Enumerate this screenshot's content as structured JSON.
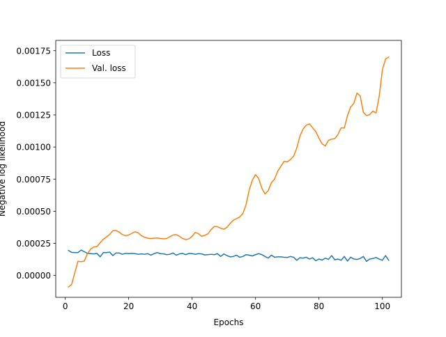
{
  "chart_data": {
    "type": "line",
    "title": "",
    "xlabel": "Epochs",
    "ylabel": "Negative log likelihood",
    "xlim": [
      -3,
      106
    ],
    "ylim": [
      -0.00017,
      0.00183
    ],
    "xticks": [
      0,
      20,
      40,
      60,
      80,
      100
    ],
    "xtick_labels": [
      "0",
      "20",
      "40",
      "60",
      "80",
      "100"
    ],
    "yticks": [
      0.0,
      0.00025,
      0.0005,
      0.00075,
      0.001,
      0.00125,
      0.0015,
      0.00175
    ],
    "ytick_labels": [
      "0.00000",
      "0.00025",
      "0.00050",
      "0.00075",
      "0.00100",
      "0.00125",
      "0.00150",
      "0.00175"
    ],
    "grid": false,
    "legend": "top-left",
    "x": [
      1,
      2,
      3,
      4,
      5,
      6,
      7,
      8,
      9,
      10,
      11,
      12,
      13,
      14,
      15,
      16,
      17,
      18,
      19,
      20,
      21,
      22,
      23,
      24,
      25,
      26,
      27,
      28,
      29,
      30,
      31,
      32,
      33,
      34,
      35,
      36,
      37,
      38,
      39,
      40,
      41,
      42,
      43,
      44,
      45,
      46,
      47,
      48,
      49,
      50,
      51,
      52,
      53,
      54,
      55,
      56,
      57,
      58,
      59,
      60,
      61,
      62,
      63,
      64,
      65,
      66,
      67,
      68,
      69,
      70,
      71,
      72,
      73,
      74,
      75,
      76,
      77,
      78,
      79,
      80,
      81,
      82,
      83,
      84,
      85,
      86,
      87,
      88,
      89,
      90,
      91,
      92,
      93,
      94,
      95,
      96,
      97,
      98,
      99,
      100,
      101,
      102
    ],
    "series": [
      {
        "name": "Loss",
        "color": "#1f77b4",
        "values": [
          0.000195,
          0.00018,
          0.000178,
          0.000178,
          0.000198,
          0.000185,
          0.000172,
          0.00017,
          0.000168,
          0.000172,
          0.000145,
          0.000178,
          0.000178,
          0.000182,
          0.000155,
          0.000175,
          0.000175,
          0.000165,
          0.000172,
          0.00017,
          0.000172,
          0.00017,
          0.000165,
          0.000168,
          0.000165,
          0.00017,
          0.000158,
          0.00017,
          0.000178,
          0.00017,
          0.000168,
          0.000162,
          0.000165,
          0.000175,
          0.000158,
          0.000168,
          0.000172,
          0.000162,
          0.000172,
          0.00017,
          0.000165,
          0.00017,
          0.000168,
          0.00016,
          0.000162,
          0.000165,
          0.000162,
          0.00017,
          0.000148,
          0.000168,
          0.000155,
          0.000145,
          0.000148,
          0.000158,
          0.000142,
          0.000148,
          0.000162,
          0.000158,
          0.000152,
          0.000162,
          0.00017,
          0.000162,
          0.000148,
          0.000135,
          0.000158,
          0.000142,
          0.000145,
          0.000145,
          0.000142,
          0.00014,
          0.000148,
          0.000142,
          0.000118,
          0.000138,
          0.000135,
          0.000142,
          0.000128,
          0.000138,
          0.000115,
          0.000128,
          0.00012,
          0.000135,
          0.000125,
          0.000155,
          0.000122,
          0.000128,
          0.000118,
          0.000148,
          0.000112,
          0.000142,
          0.000128,
          0.000125,
          0.000132,
          0.000148,
          0.00011,
          0.000128,
          0.000132,
          0.00014,
          0.000128,
          0.000118,
          0.000155,
          0.000118
        ]
      },
      {
        "name": "Val. loss",
        "color": "#ff7f0e",
        "values": [
          -9e-05,
          -7e-05,
          2e-05,
          0.00011,
          0.000108,
          0.000112,
          0.00017,
          0.000205,
          0.000222,
          0.000225,
          0.000255,
          0.000282,
          0.0003,
          0.00032,
          0.000348,
          0.00035,
          0.000338,
          0.000318,
          0.00031,
          0.000315,
          0.000328,
          0.00034,
          0.000332,
          0.00031,
          0.000298,
          0.00029,
          0.000288,
          0.00029,
          0.000292,
          0.000288,
          0.000285,
          0.000288,
          0.000302,
          0.000315,
          0.000318,
          0.000305,
          0.000288,
          0.00028,
          0.000285,
          0.000305,
          0.000335,
          0.000325,
          0.000305,
          0.000312,
          0.000325,
          0.000358,
          0.000382,
          0.00038,
          0.000368,
          0.00036,
          0.000375,
          0.000405,
          0.00043,
          0.000442,
          0.000455,
          0.000482,
          0.00055,
          0.000665,
          0.000742,
          0.000785,
          0.000755,
          0.000678,
          0.000635,
          0.00066,
          0.000722,
          0.00075,
          0.000812,
          0.00085,
          0.000888,
          0.000885,
          0.000902,
          0.000928,
          0.000992,
          0.001085,
          0.00114,
          0.00117,
          0.00118,
          0.00115,
          0.00112,
          0.001068,
          0.001025,
          0.001008,
          0.001052,
          0.001062,
          0.001065,
          0.001098,
          0.00115,
          0.001148,
          0.001245,
          0.001312,
          0.00134,
          0.00142,
          0.001398,
          0.00127,
          0.001245,
          0.001252,
          0.00128,
          0.001265,
          0.001395,
          0.0016,
          0.001685,
          0.0017
        ]
      }
    ]
  }
}
